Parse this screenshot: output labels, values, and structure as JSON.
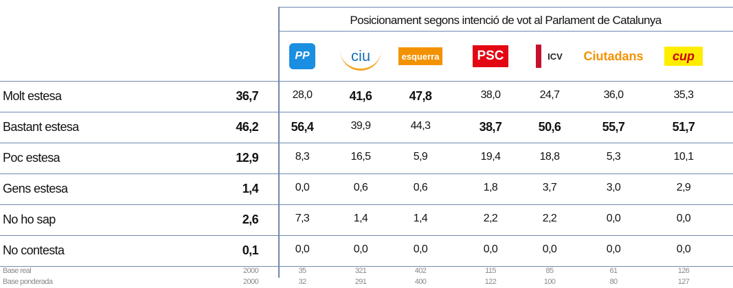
{
  "table": {
    "title": "Posicionament segons intenció de vot al Parlament de Catalunya",
    "parties": [
      "PP",
      "ciu",
      "esquerra",
      "PSC",
      "ICV",
      "Ciutadans",
      "cup"
    ],
    "rows": [
      {
        "label": "Molt estesa",
        "total": "36,7",
        "values": [
          "28,0",
          "41,6",
          "47,8",
          "38,0",
          "24,7",
          "36,0",
          "35,3"
        ],
        "bold": [
          1,
          2
        ]
      },
      {
        "label": "Bastant estesa",
        "total": "46,2",
        "values": [
          "56,4",
          "39,9",
          "44,3",
          "38,7",
          "50,6",
          "55,7",
          "51,7"
        ],
        "bold": [
          0,
          3,
          4,
          5,
          6
        ]
      },
      {
        "label": "Poc estesa",
        "total": "12,9",
        "values": [
          "8,3",
          "16,5",
          "5,9",
          "19,4",
          "18,8",
          "5,3",
          "10,1"
        ],
        "bold": []
      },
      {
        "label": "Gens estesa",
        "total": "1,4",
        "values": [
          "0,0",
          "0,6",
          "0,6",
          "1,8",
          "3,7",
          "3,0",
          "2,9"
        ],
        "bold": []
      },
      {
        "label": "No ho sap",
        "total": "2,6",
        "values": [
          "7,3",
          "1,4",
          "1,4",
          "2,2",
          "2,2",
          "0,0",
          "0,0"
        ],
        "bold": []
      },
      {
        "label": "No contesta",
        "total": "0,1",
        "values": [
          "0,0",
          "0,0",
          "0,0",
          "0,0",
          "0,0",
          "0,0",
          "0,0"
        ],
        "bold": []
      }
    ],
    "bases": [
      {
        "label": "Base real",
        "total": "2000",
        "values": [
          "35",
          "321",
          "402",
          "115",
          "85",
          "61",
          "126"
        ]
      },
      {
        "label": "Base ponderada",
        "total": "2000",
        "values": [
          "32",
          "291",
          "400",
          "122",
          "100",
          "80",
          "127"
        ]
      }
    ]
  }
}
